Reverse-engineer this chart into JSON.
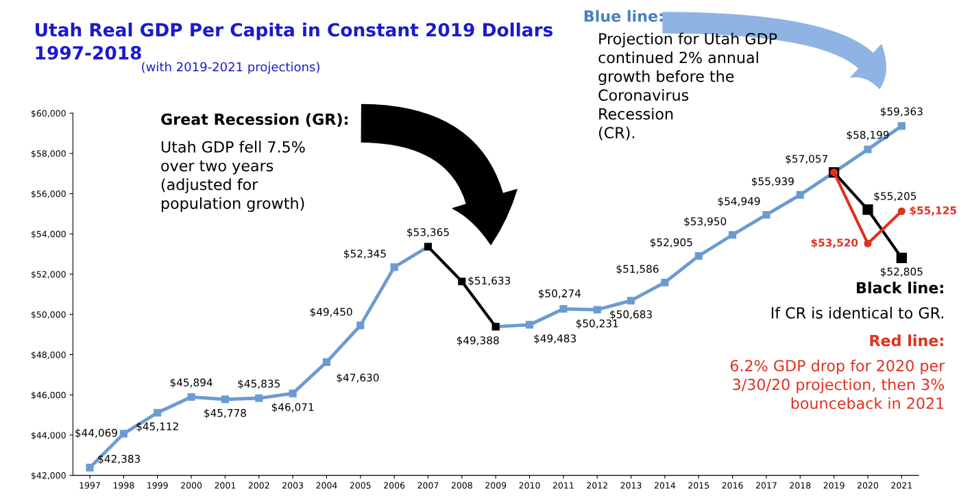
{
  "chart_data": {
    "type": "line",
    "title": "Utah Real GDP Per Capita in Constant 2019 Dollars\n1997-2018",
    "subtitle": "(with 2019-2021 projections)",
    "categories": [
      "1997",
      "1998",
      "1999",
      "2000",
      "2001",
      "2002",
      "2003",
      "2004",
      "2005",
      "2006",
      "2007",
      "2008",
      "2009",
      "2010",
      "2011",
      "2012",
      "2013",
      "2014",
      "2015",
      "2016",
      "2017",
      "2018",
      "2019",
      "2020",
      "2021"
    ],
    "series": [
      {
        "color": "#6b9bd1",
        "marker": "square",
        "values": [
          42383,
          44069,
          45112,
          45894,
          45778,
          45835,
          46071,
          47630,
          49450,
          52345,
          53365,
          null,
          49388,
          49483,
          50274,
          50231,
          50683,
          51586,
          52905,
          53950,
          54949,
          55939,
          57057,
          58199,
          59363
        ],
        "value_labels": [
          "$42,383",
          "$44,069",
          "$45,112",
          "$45,894",
          "$45,778",
          "$45,835",
          "$46,071",
          "$47,630",
          "$49,450",
          "$52,345",
          "$53,365",
          null,
          "$49,388",
          "$49,483",
          "$50,274",
          "$50,231",
          "$50,683",
          "$51,586",
          "$52,905",
          "$53,950",
          "$54,949",
          "$55,939",
          "$57,057",
          "$58,199",
          "$59,363"
        ]
      },
      {
        "color": "#000000",
        "marker": "square",
        "values": [
          null,
          null,
          null,
          null,
          null,
          null,
          null,
          null,
          null,
          null,
          53365,
          51633,
          49388,
          null,
          null,
          null,
          null,
          null,
          null,
          null,
          null,
          null,
          null,
          null,
          null
        ],
        "value_labels": [
          null,
          null,
          null,
          null,
          null,
          null,
          null,
          null,
          null,
          null,
          null,
          "$51,633",
          null,
          null,
          null,
          null,
          null,
          null,
          null,
          null,
          null,
          null,
          null,
          null,
          null
        ]
      },
      {
        "color": "#000000",
        "marker": "square",
        "values": [
          null,
          null,
          null,
          null,
          null,
          null,
          null,
          null,
          null,
          null,
          null,
          null,
          null,
          null,
          null,
          null,
          null,
          null,
          null,
          null,
          null,
          null,
          57057,
          55205,
          52805
        ],
        "value_labels": [
          null,
          null,
          null,
          null,
          null,
          null,
          null,
          null,
          null,
          null,
          null,
          null,
          null,
          null,
          null,
          null,
          null,
          null,
          null,
          null,
          null,
          null,
          null,
          "$55,205",
          "$52,805"
        ]
      },
      {
        "color": "#e0301e",
        "marker": "circle",
        "values": [
          null,
          null,
          null,
          null,
          null,
          null,
          null,
          null,
          null,
          null,
          null,
          null,
          null,
          null,
          null,
          null,
          null,
          null,
          null,
          null,
          null,
          null,
          57057,
          53520,
          55125
        ],
        "value_labels": [
          null,
          null,
          null,
          null,
          null,
          null,
          null,
          null,
          null,
          null,
          null,
          null,
          null,
          null,
          null,
          null,
          null,
          null,
          null,
          null,
          null,
          null,
          null,
          "$53,520",
          "$55,125"
        ]
      }
    ],
    "ylim": [
      42000,
      60000
    ],
    "yticks": [
      {
        "value": 42000,
        "label": "$42,000"
      },
      {
        "value": 44000,
        "label": "$44,000"
      },
      {
        "value": 46000,
        "label": "$46,000"
      },
      {
        "value": 48000,
        "label": "$48,000"
      },
      {
        "value": 50000,
        "label": "$50,000"
      },
      {
        "value": 52000,
        "label": "$52,000"
      },
      {
        "value": 54000,
        "label": "$54,000"
      },
      {
        "value": 56000,
        "label": "$56,000"
      },
      {
        "value": 58000,
        "label": "$58,000"
      },
      {
        "value": 60000,
        "label": "$60,000"
      }
    ],
    "grid": false,
    "legend": false,
    "annotations": [
      "Great Recession (GR):",
      "Utah GDP fell 7.5%\nover two years\n(adjusted for\npopulation growth)",
      "Blue line:",
      "Projection for Utah GDP\ncontinued 2% annual\ngrowth before the\nCoronavirus\nRecession\n(CR).",
      "Black line:",
      "If CR is identical to GR.",
      "Red line:",
      "6.2% GDP drop for 2020 per\n3/30/20 projection, then 3%\nbounceback in 2021"
    ]
  }
}
